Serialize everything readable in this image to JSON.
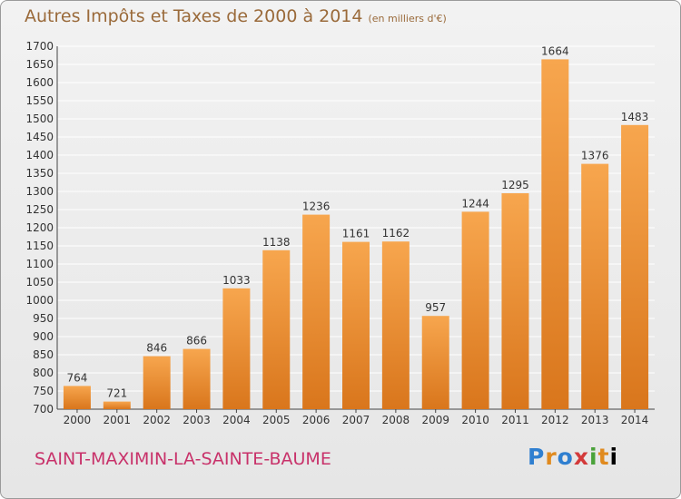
{
  "header": {
    "title": "Autres Impôts et Taxes de 2000 à 2014",
    "unit": "(en milliers d'€)"
  },
  "footer": {
    "commune": "SAINT-MAXIMIN-LA-SAINTE-BAUME",
    "logo_letters": [
      "P",
      "r",
      "o",
      "x",
      "i",
      "t",
      "i"
    ]
  },
  "colors": {
    "bar_light": "#f7a64e",
    "bar_dark": "#d9761c",
    "title": "#9a6a3a",
    "commune": "#c8326a",
    "grid": "#ffffff"
  },
  "chart_data": {
    "type": "bar",
    "title": "Autres Impôts et Taxes de 2000 à 2014",
    "subtitle": "(en milliers d'€)",
    "xlabel": "",
    "ylabel": "",
    "categories": [
      "2000",
      "2001",
      "2002",
      "2003",
      "2004",
      "2005",
      "2006",
      "2007",
      "2008",
      "2009",
      "2010",
      "2011",
      "2012",
      "2013",
      "2014"
    ],
    "values": [
      764,
      721,
      846,
      866,
      1033,
      1138,
      1236,
      1161,
      1162,
      957,
      1244,
      1295,
      1664,
      1376,
      1483
    ],
    "ylim": [
      700,
      1700
    ],
    "yticks": [
      700,
      750,
      800,
      850,
      900,
      950,
      1000,
      1050,
      1100,
      1150,
      1200,
      1250,
      1300,
      1350,
      1400,
      1450,
      1500,
      1550,
      1600,
      1650,
      1700
    ],
    "grid": true,
    "data_labels": true
  }
}
